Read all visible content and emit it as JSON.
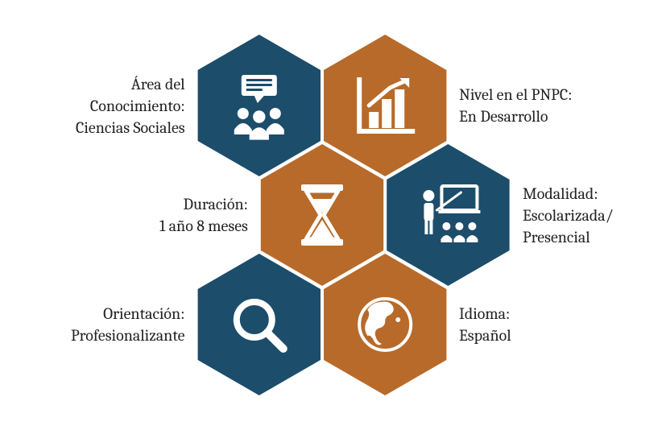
{
  "colors": {
    "blue": "#1c4d6b",
    "brown": "#b76a2a",
    "icon": "#ffffff",
    "text": "#222222",
    "background": "#ffffff"
  },
  "hex": {
    "radius": 88,
    "gap": 4
  },
  "items": [
    {
      "key": "area",
      "icon": "group-chat",
      "color": "blue",
      "pos": "top-left",
      "labelSide": "left",
      "labelTitle": "Área del",
      "labelTitle2": "Conocimiento:",
      "labelValue": "Ciencias Sociales"
    },
    {
      "key": "pnpc",
      "icon": "bar-chart",
      "color": "brown",
      "pos": "top-right",
      "labelSide": "right",
      "labelTitle": "Nivel en el PNPC:",
      "labelValue": "En Desarrollo"
    },
    {
      "key": "duracion",
      "icon": "hourglass",
      "color": "brown",
      "pos": "mid-center",
      "labelSide": "left",
      "labelTitle": "Duración:",
      "labelValue": "1 año 8 meses"
    },
    {
      "key": "modalidad",
      "icon": "teacher",
      "color": "blue",
      "pos": "mid-right",
      "labelSide": "right",
      "labelTitle": "Modalidad:",
      "labelValue": "Escolarizada/",
      "labelValue2": "Presencial"
    },
    {
      "key": "orientacion",
      "icon": "magnifier",
      "color": "blue",
      "pos": "bot-left",
      "labelSide": "left",
      "labelTitle": "Orientación:",
      "labelValue": "Profesionalizante"
    },
    {
      "key": "idioma",
      "icon": "globe",
      "color": "brown",
      "pos": "bot-right",
      "labelSide": "right",
      "labelTitle": "Idioma:",
      "labelValue": "Español"
    }
  ],
  "typography": {
    "fontSize": 20,
    "lineHeight": 1.35
  }
}
